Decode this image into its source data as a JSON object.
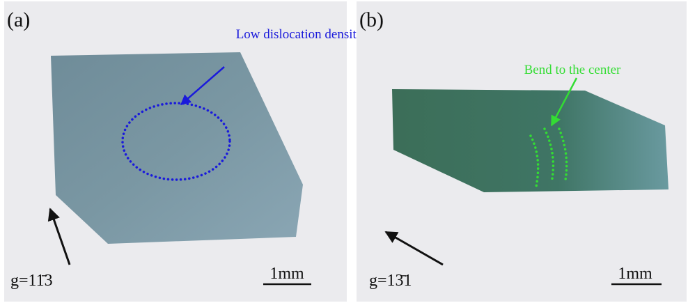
{
  "panels": [
    {
      "label": "(a)",
      "annotation": "Low dislocation density",
      "g_vector": "g=11̄3",
      "scale_bar": "1mm"
    },
    {
      "label": "(b)",
      "annotation": "Bend to the center",
      "g_vector": "g=13̄1",
      "scale_bar": "1mm"
    }
  ]
}
